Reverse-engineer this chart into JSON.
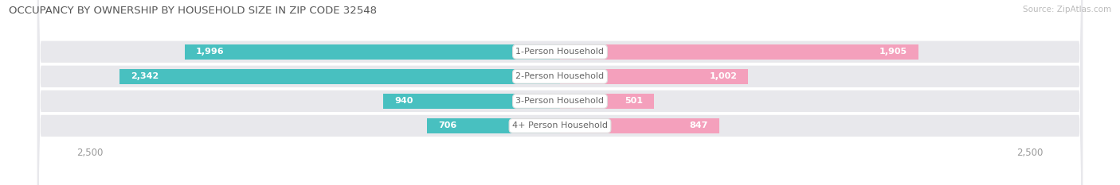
{
  "title": "OCCUPANCY BY OWNERSHIP BY HOUSEHOLD SIZE IN ZIP CODE 32548",
  "source": "Source: ZipAtlas.com",
  "categories": [
    "1-Person Household",
    "2-Person Household",
    "3-Person Household",
    "4+ Person Household"
  ],
  "owner_values": [
    1996,
    2342,
    940,
    706
  ],
  "renter_values": [
    1905,
    1002,
    501,
    847
  ],
  "max_val": 2500,
  "owner_color": "#48c0c0",
  "renter_color": "#f4a0bc",
  "row_bg_color": "#e8e8ec",
  "label_color": "#666666",
  "title_color": "#555555",
  "axis_label_color": "#999999",
  "figsize": [
    14.06,
    2.33
  ],
  "dpi": 100,
  "inner_label_threshold": 400
}
